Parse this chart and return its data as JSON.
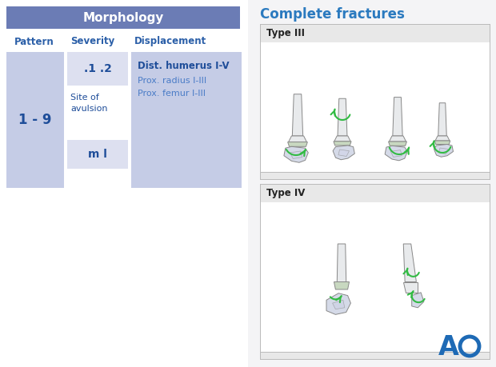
{
  "bg_color": "#f4f4f6",
  "header_bg": "#6b7cb5",
  "header_text": "Morphology",
  "header_text_color": "#ffffff",
  "col_labels": [
    "Pattern",
    "Severity",
    "Displacement"
  ],
  "col_label_color": "#2b5fa8",
  "cell1_bg": "#c5cce6",
  "cell1_text": "1 - 9",
  "cell1_text_color": "#1e4d99",
  "cell2a_bg": "#dde0f0",
  "cell2a_text": ".1 .2",
  "cell2a_text_color": "#1e4d99",
  "cell2b_text": "Site of\navulsion",
  "cell2b_text_color": "#1e4d99",
  "cell2c_bg": "#dde0f0",
  "cell2c_text": "m l",
  "cell2c_text_color": "#1e4d99",
  "cell3_bg": "#c5cce6",
  "cell3_line1": "Dist. humerus I-V",
  "cell3_line2": "Prox. radius I-III",
  "cell3_line3": "Prox. femur I-III",
  "cell3_bold_color": "#1e4d99",
  "cell3_normal_color": "#4a7cc7",
  "right_title": "Complete fractures",
  "right_title_color": "#2b7abf",
  "type3_label": "Type III",
  "type4_label": "Type IV",
  "type_label_color": "#222222",
  "box_border_color": "#bbbbbb",
  "box_header_bg": "#e8e8e8",
  "box_body_bg": "#ffffff",
  "ao_color": "#1e6ab5",
  "overall_bg": "#f4f4f6",
  "green": "#33bb44",
  "bone_fill": "#e8eaec",
  "bone_edge": "#888888",
  "epi_fill": "#c8d8c0",
  "frag_fill": "#d5dae8"
}
